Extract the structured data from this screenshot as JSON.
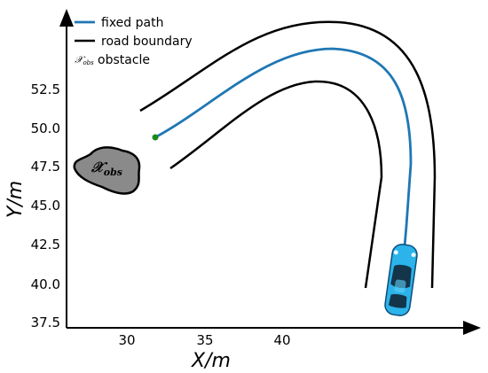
{
  "legend": {
    "fixed_path": "fixed path",
    "road_boundary": "road boundary",
    "obstacle_symbol": "𝒳",
    "obstacle_sub": "obs",
    "obstacle_label": "obstacle"
  },
  "obstacle": {
    "symbol": "𝒳",
    "sub": "obs"
  },
  "chart_data": {
    "type": "line",
    "xlabel": "X/m",
    "ylabel": "Y/m",
    "xticks": [
      "30",
      "35",
      "40"
    ],
    "yticks": [
      "37.5",
      "40.0",
      "42.5",
      "45.0",
      "47.5",
      "50.0",
      "52.5"
    ],
    "colors": {
      "fixed_path": "#1f77b4",
      "road_boundary": "#000000",
      "start_point": "#1a8a1a",
      "obstacle_fill": "#888888",
      "car_body": "#2bb3ea"
    },
    "legend_position": "top-left",
    "grid": false
  }
}
